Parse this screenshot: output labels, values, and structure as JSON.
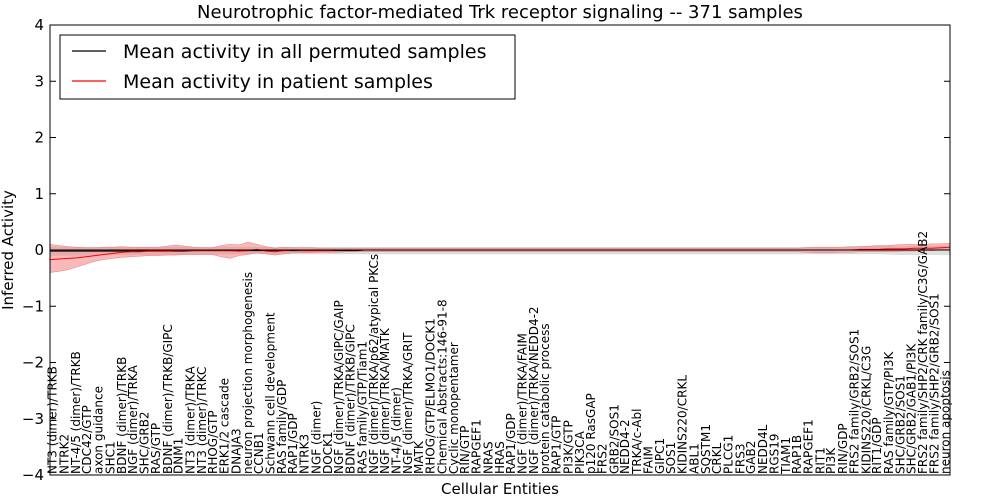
{
  "chart_data": {
    "type": "line",
    "title": "Neurotrophic factor-mediated Trk receptor signaling -- 371 samples",
    "xlabel": "Cellular Entities",
    "ylabel": "Inferred Activity",
    "ylim": [
      -4,
      4
    ],
    "yticks": [
      4,
      3,
      2,
      1,
      0,
      -1,
      -2,
      -3,
      -4
    ],
    "ytick_labels": [
      "4",
      "3",
      "2",
      "1",
      "0",
      "−1",
      "−2",
      "−3",
      "−4"
    ],
    "xlim": [
      0,
      100
    ],
    "grid": false,
    "legend_position": "top-left",
    "series": [
      {
        "name": "Mean activity in all permuted samples",
        "color": "#000000",
        "band_color": "#cccccc",
        "mean": [
          -0.02,
          -0.02,
          -0.02,
          -0.02,
          -0.02,
          -0.02,
          -0.02,
          -0.02,
          -0.02,
          -0.02,
          -0.02,
          -0.02,
          -0.02,
          -0.02,
          -0.02,
          -0.02,
          -0.01,
          -0.01,
          -0.01,
          -0.01,
          -0.01,
          -0.01,
          -0.01,
          -0.01,
          -0.01,
          -0.01,
          -0.01,
          -0.01,
          -0.01,
          -0.01,
          -0.01,
          -0.01,
          -0.01,
          -0.01,
          -0.01,
          0,
          0,
          0,
          0,
          0,
          0,
          0,
          0,
          0,
          0,
          0,
          0,
          0,
          0,
          0,
          0,
          0,
          0,
          0,
          0,
          0,
          0,
          0,
          0,
          0,
          0,
          0,
          0,
          0,
          0,
          0,
          0,
          0,
          0,
          0,
          0,
          0,
          0,
          0,
          0,
          0,
          0,
          0,
          0,
          0,
          0,
          0,
          0,
          0,
          0,
          0,
          0,
          0,
          0,
          0,
          0,
          0,
          0,
          0,
          0,
          0,
          0,
          0,
          0,
          0,
          0
        ],
        "lower": [
          -0.09,
          -0.09,
          -0.09,
          -0.09,
          -0.09,
          -0.09,
          -0.08,
          -0.08,
          -0.08,
          -0.08,
          -0.08,
          -0.08,
          -0.08,
          -0.08,
          -0.08,
          -0.08,
          -0.08,
          -0.08,
          -0.08,
          -0.07,
          -0.07,
          -0.07,
          -0.07,
          -0.07,
          -0.07,
          -0.07,
          -0.07,
          -0.07,
          -0.07,
          -0.07,
          -0.07,
          -0.07,
          -0.07,
          -0.07,
          -0.07,
          -0.07,
          -0.07,
          -0.07,
          -0.07,
          -0.07,
          -0.07,
          -0.07,
          -0.07,
          -0.07,
          -0.07,
          -0.07,
          -0.07,
          -0.07,
          -0.07,
          -0.07,
          -0.07,
          -0.07,
          -0.07,
          -0.07,
          -0.07,
          -0.07,
          -0.07,
          -0.07,
          -0.07,
          -0.07,
          -0.07,
          -0.07,
          -0.07,
          -0.07,
          -0.07,
          -0.07,
          -0.07,
          -0.07,
          -0.07,
          -0.07,
          -0.07,
          -0.07,
          -0.07,
          -0.07,
          -0.07,
          -0.07,
          -0.07,
          -0.07,
          -0.07,
          -0.07,
          -0.07,
          -0.07,
          -0.07,
          -0.07,
          -0.07,
          -0.07,
          -0.07,
          -0.07,
          -0.07,
          -0.07,
          -0.07,
          -0.07,
          -0.07,
          -0.07,
          -0.08,
          -0.08,
          -0.08,
          -0.08,
          -0.08,
          -0.08,
          -0.08
        ],
        "upper": [
          0.05,
          0.05,
          0.05,
          0.05,
          0.05,
          0.05,
          0.05,
          0.05,
          0.05,
          0.05,
          0.05,
          0.05,
          0.05,
          0.05,
          0.05,
          0.05,
          0.05,
          0.05,
          0.05,
          0.05,
          0.05,
          0.05,
          0.05,
          0.05,
          0.05,
          0.05,
          0.05,
          0.05,
          0.05,
          0.05,
          0.05,
          0.05,
          0.05,
          0.05,
          0.05,
          0.05,
          0.05,
          0.05,
          0.05,
          0.05,
          0.05,
          0.05,
          0.05,
          0.05,
          0.05,
          0.05,
          0.05,
          0.05,
          0.05,
          0.05,
          0.05,
          0.05,
          0.05,
          0.05,
          0.05,
          0.05,
          0.05,
          0.05,
          0.05,
          0.05,
          0.05,
          0.05,
          0.05,
          0.05,
          0.05,
          0.05,
          0.05,
          0.05,
          0.05,
          0.05,
          0.05,
          0.05,
          0.05,
          0.05,
          0.05,
          0.05,
          0.05,
          0.05,
          0.05,
          0.05,
          0.05,
          0.05,
          0.05,
          0.05,
          0.05,
          0.05,
          0.05,
          0.05,
          0.05,
          0.05,
          0.06,
          0.06,
          0.06,
          0.06,
          0.06,
          0.06,
          0.07,
          0.07,
          0.07,
          0.07,
          0.07
        ]
      },
      {
        "name": "Mean activity in patient samples",
        "color": "#ff0000",
        "band_color": "#f08080",
        "mean": [
          -0.17,
          -0.16,
          -0.15,
          -0.14,
          -0.12,
          -0.1,
          -0.08,
          -0.06,
          -0.04,
          -0.03,
          -0.03,
          -0.02,
          -0.02,
          -0.02,
          -0.01,
          -0.01,
          -0.01,
          -0.01,
          -0.01,
          -0.01,
          -0.01,
          -0.02,
          -0.01,
          0.01,
          -0.02,
          -0.03,
          -0.01,
          0,
          -0.01,
          -0.01,
          -0.01,
          -0.01,
          0,
          0,
          0,
          0,
          0,
          0,
          0,
          0,
          0,
          0,
          0,
          0,
          0,
          0,
          0,
          0,
          0,
          0,
          0,
          0,
          0,
          0,
          0,
          0,
          0,
          0,
          0,
          0,
          0,
          0,
          0,
          0,
          0,
          0,
          0,
          0,
          0,
          0,
          0,
          0,
          0,
          0,
          0,
          0,
          0,
          0,
          0,
          0,
          0,
          0,
          0,
          0,
          0,
          0,
          0,
          0,
          0,
          0,
          0.01,
          0.01,
          0.01,
          0.02,
          0.02,
          0.02,
          0.03,
          0.03,
          0.03,
          0.04,
          0.05
        ],
        "lower": [
          -0.4,
          -0.38,
          -0.35,
          -0.3,
          -0.25,
          -0.2,
          -0.17,
          -0.15,
          -0.13,
          -0.12,
          -0.11,
          -0.1,
          -0.1,
          -0.09,
          -0.09,
          -0.08,
          -0.08,
          -0.08,
          -0.08,
          -0.12,
          -0.15,
          -0.1,
          -0.08,
          -0.05,
          -0.07,
          -0.09,
          -0.07,
          -0.05,
          -0.05,
          -0.05,
          -0.04,
          -0.04,
          -0.04,
          -0.03,
          -0.03,
          -0.03,
          -0.03,
          -0.03,
          -0.03,
          -0.03,
          -0.03,
          -0.03,
          -0.03,
          -0.03,
          -0.03,
          -0.03,
          -0.03,
          -0.03,
          -0.03,
          -0.03,
          -0.03,
          -0.03,
          -0.03,
          -0.03,
          -0.03,
          -0.03,
          -0.03,
          -0.03,
          -0.03,
          -0.03,
          -0.03,
          -0.03,
          -0.03,
          -0.03,
          -0.03,
          -0.03,
          -0.03,
          -0.03,
          -0.03,
          -0.03,
          -0.03,
          -0.03,
          -0.03,
          -0.03,
          -0.03,
          -0.03,
          -0.03,
          -0.03,
          -0.03,
          -0.03,
          -0.03,
          -0.03,
          -0.03,
          -0.03,
          -0.04,
          -0.05,
          -0.05,
          -0.05,
          -0.04,
          -0.04,
          -0.03,
          -0.03,
          -0.03,
          -0.03,
          -0.03,
          -0.02,
          -0.02,
          -0.01,
          -0.01,
          0,
          0
        ],
        "upper": [
          0.1,
          0.08,
          0.06,
          0.05,
          0.04,
          0.04,
          0.05,
          0.05,
          0.06,
          0.05,
          0.05,
          0.05,
          0.05,
          0.07,
          0.09,
          0.07,
          0.05,
          0.04,
          0.04,
          0.08,
          0.1,
          0.09,
          0.14,
          0.1,
          0.06,
          0.03,
          0.05,
          0.04,
          0.04,
          0.04,
          0.03,
          0.03,
          0.03,
          0.03,
          0.03,
          0.03,
          0.03,
          0.03,
          0.03,
          0.03,
          0.03,
          0.03,
          0.03,
          0.03,
          0.03,
          0.03,
          0.03,
          0.03,
          0.03,
          0.03,
          0.03,
          0.03,
          0.03,
          0.03,
          0.03,
          0.03,
          0.03,
          0.03,
          0.03,
          0.03,
          0.03,
          0.03,
          0.03,
          0.03,
          0.03,
          0.03,
          0.03,
          0.03,
          0.03,
          0.03,
          0.03,
          0.03,
          0.03,
          0.03,
          0.03,
          0.03,
          0.03,
          0.03,
          0.03,
          0.03,
          0.03,
          0.03,
          0.03,
          0.03,
          0.04,
          0.05,
          0.05,
          0.05,
          0.05,
          0.06,
          0.06,
          0.07,
          0.08,
          0.08,
          0.09,
          0.1,
          0.1,
          0.1,
          0.11,
          0.11,
          0.12
        ]
      }
    ],
    "entity_labels": [
      {
        "x": 0.3,
        "text": "NT3 (dimer)/TRKB"
      },
      {
        "x": 1.6,
        "text": "NTRK2"
      },
      {
        "x": 2.9,
        "text": "NT-4/5 (dimer)/TRKB"
      },
      {
        "x": 4.1,
        "text": "CDC42/GTP"
      },
      {
        "x": 5.4,
        "text": "axon guidance"
      },
      {
        "x": 6.7,
        "text": "SHC1"
      },
      {
        "x": 8.0,
        "text": "BDNF (dimer)/TRKB"
      },
      {
        "x": 9.2,
        "text": "NGF (dimer)/TRKA"
      },
      {
        "x": 10.5,
        "text": "SHC/GRB2"
      },
      {
        "x": 11.8,
        "text": "RAS/GTP"
      },
      {
        "x": 13.1,
        "text": "BDNF (dimer)/TRKB/GIPC"
      },
      {
        "x": 14.3,
        "text": "DNM1"
      },
      {
        "x": 15.6,
        "text": "NT3 (dimer)/TRKA"
      },
      {
        "x": 16.9,
        "text": "NT3 (dimer)/TRKC"
      },
      {
        "x": 18.1,
        "text": "RHOG/GTP"
      },
      {
        "x": 19.4,
        "text": "ERK1/2 cascade"
      },
      {
        "x": 20.7,
        "text": "DNAJA3"
      },
      {
        "x": 22.0,
        "text": "neuron projection morphogenesis"
      },
      {
        "x": 23.2,
        "text": "CCNB1"
      },
      {
        "x": 24.5,
        "text": "Schwann cell development"
      },
      {
        "x": 25.8,
        "text": "RAS family/GDP"
      },
      {
        "x": 27.0,
        "text": "RAP1/GDP"
      },
      {
        "x": 28.3,
        "text": "NTRK3"
      },
      {
        "x": 29.6,
        "text": "NGF (dimer)"
      },
      {
        "x": 30.9,
        "text": "DOCK1"
      },
      {
        "x": 32.1,
        "text": "NGF (dimer)/TRKA/GIPC/GAIP"
      },
      {
        "x": 33.4,
        "text": "BDNF (dimer)/TRKB/GIPC"
      },
      {
        "x": 34.7,
        "text": "RAS family/GTP/Tiam1"
      },
      {
        "x": 36.0,
        "text": "NGF (dimer)/TRKA/p62/atypical PKCs"
      },
      {
        "x": 37.2,
        "text": "NGF (dimer)/TRKA/MATK"
      },
      {
        "x": 38.5,
        "text": "NT-4/5 (dimer)"
      },
      {
        "x": 39.8,
        "text": "NGF (dimer)/TRKA/GRIT"
      },
      {
        "x": 41.0,
        "text": "MATK"
      },
      {
        "x": 42.3,
        "text": "RHOG/GTP/ELMO1/DOCK1"
      },
      {
        "x": 43.6,
        "text": "Chemical Abstracts:146-91-8"
      },
      {
        "x": 44.9,
        "text": "Cyclic monopentamer"
      },
      {
        "x": 46.1,
        "text": "RIN/GTP"
      },
      {
        "x": 47.4,
        "text": "RAPGEF1"
      },
      {
        "x": 48.7,
        "text": "NRAS"
      },
      {
        "x": 50.0,
        "text": "HRAS"
      },
      {
        "x": 51.2,
        "text": "RAP1/GDP"
      },
      {
        "x": 52.5,
        "text": "NGF (dimer)/TRKA/FAIM"
      },
      {
        "x": 53.8,
        "text": "NGF (dimer)/TRKA/NEDD4-2"
      },
      {
        "x": 55.0,
        "text": "protein catabolic process"
      },
      {
        "x": 56.3,
        "text": "RAP1/GTP"
      },
      {
        "x": 57.6,
        "text": "PI3K/GTP"
      },
      {
        "x": 58.9,
        "text": "PIK3CA"
      },
      {
        "x": 60.1,
        "text": "p120 RasGAP"
      },
      {
        "x": 61.4,
        "text": "FRS2"
      },
      {
        "x": 62.7,
        "text": "GRB2/SOS1"
      },
      {
        "x": 63.9,
        "text": "NEDD4-2"
      },
      {
        "x": 65.2,
        "text": "TRKA/c-Abl"
      },
      {
        "x": 66.5,
        "text": "FAIM"
      },
      {
        "x": 67.8,
        "text": "GIPC1"
      },
      {
        "x": 69.0,
        "text": "SOS1"
      },
      {
        "x": 70.3,
        "text": "KIDINS220/CRKL"
      },
      {
        "x": 71.6,
        "text": "ABL1"
      },
      {
        "x": 72.9,
        "text": "SQSTM1"
      },
      {
        "x": 74.1,
        "text": "CRKL"
      },
      {
        "x": 75.4,
        "text": "PLCG1"
      },
      {
        "x": 76.7,
        "text": "FRS3"
      },
      {
        "x": 77.9,
        "text": "GAB2"
      },
      {
        "x": 79.2,
        "text": "NEDD4L"
      },
      {
        "x": 80.5,
        "text": "RGS19"
      },
      {
        "x": 81.8,
        "text": "TIAM1"
      },
      {
        "x": 83.0,
        "text": "RAP1B"
      },
      {
        "x": 84.3,
        "text": "RAPGEF1"
      },
      {
        "x": 85.6,
        "text": "RIT1"
      },
      {
        "x": 86.8,
        "text": "PI3K"
      },
      {
        "x": 88.1,
        "text": "RIN/GDP"
      },
      {
        "x": 89.4,
        "text": "FRS2 family/GRB2/SOS1"
      },
      {
        "x": 90.7,
        "text": "KIDINS220/CRKL/C3G"
      },
      {
        "x": 91.9,
        "text": "RIT1/GDP"
      },
      {
        "x": 93.2,
        "text": "RAS family/GTP/PI3K"
      },
      {
        "x": 94.5,
        "text": "SHC/GRB2/SOS1"
      },
      {
        "x": 95.7,
        "text": "SHC/GRB2/GAB1/PI3K"
      },
      {
        "x": 97.0,
        "text": "FRS2 family/SHP2/CRK family/C3G/GAB2"
      },
      {
        "x": 98.3,
        "text": "FRS2 family/SHP2/GRB2/SOS1"
      },
      {
        "x": 99.5,
        "text": "neuron apoptosis"
      }
    ]
  }
}
